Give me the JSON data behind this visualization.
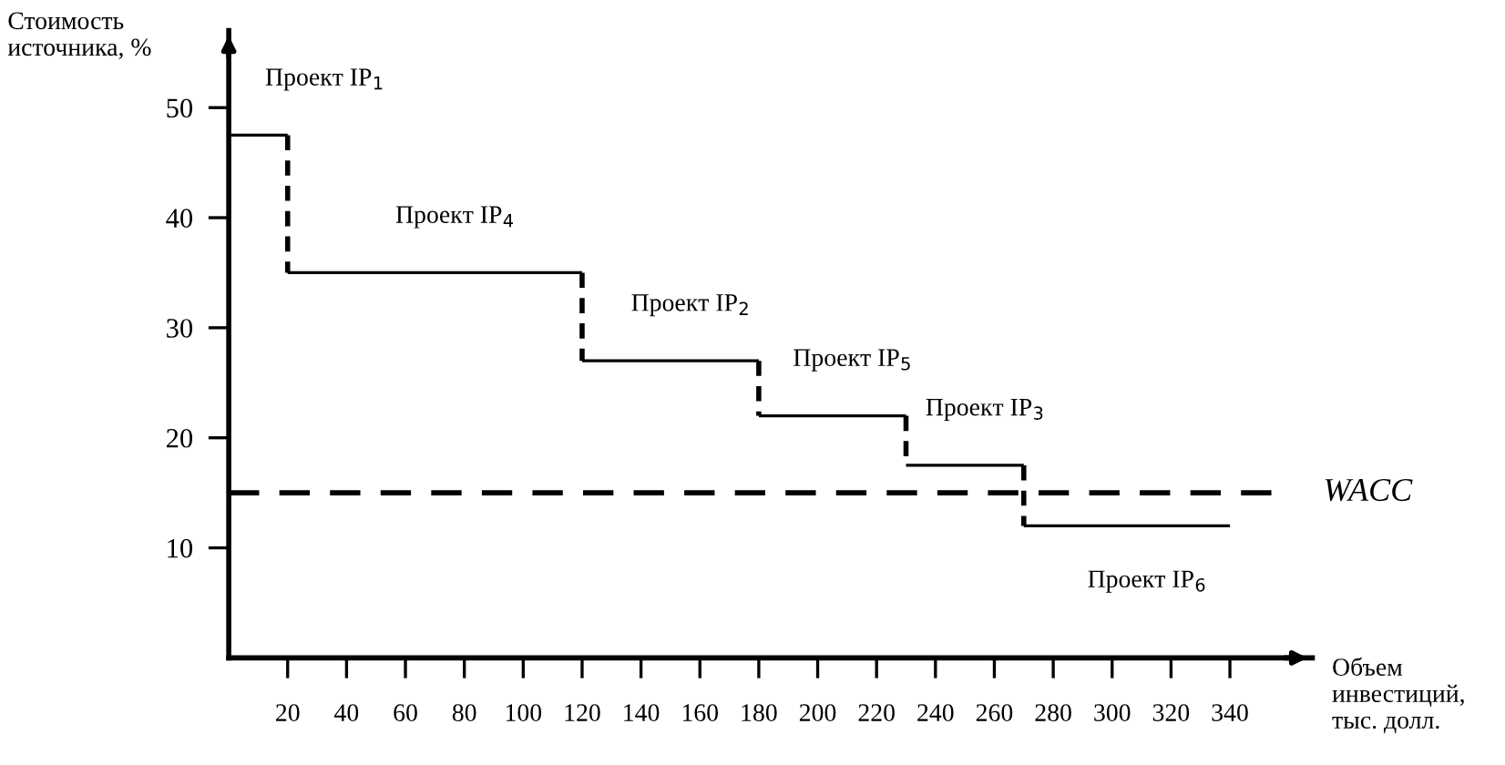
{
  "chart_data": {
    "type": "step",
    "ylabel": "Стоимость\nисточника, %",
    "xlabel": "Объем\nинвестиций,\nтыс. долл.",
    "series": [
      {
        "color": "#000000",
        "x": [
          0,
          20,
          120,
          180,
          230,
          270,
          340
        ],
        "values": [
          47.5,
          35,
          27,
          22,
          17.5,
          12,
          12
        ]
      }
    ],
    "ref_lines": [
      {
        "axis": "y",
        "value": 15,
        "label": "WACC",
        "line_style": "dashed",
        "color": "#000000"
      }
    ],
    "annotations": [
      "Проект IP$_{1}$",
      "Проект IP$_{4}$",
      "Проект IP$_{2}$",
      "Проект IP$_{5}$",
      "Проект IP$_{3}$",
      "Проект IP$_{6}$"
    ],
    "xlim": [
      0,
      368
    ],
    "ylim": [
      0,
      57
    ],
    "xticks": [
      20,
      40,
      60,
      80,
      100,
      120,
      140,
      160,
      180,
      200,
      220,
      240,
      260,
      280,
      300,
      320,
      340
    ],
    "yticks": [
      10,
      20,
      30,
      40,
      50
    ],
    "grid": false,
    "legend": false,
    "marker": "none",
    "line_style": "solid"
  }
}
